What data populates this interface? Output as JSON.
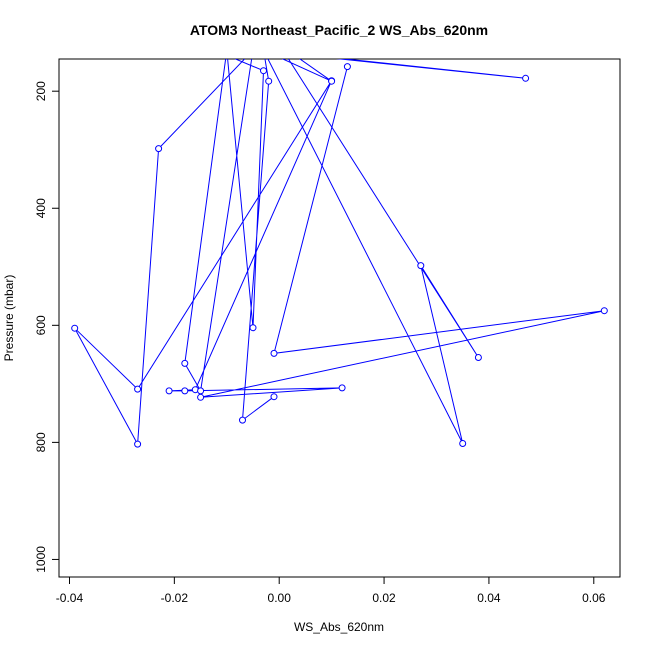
{
  "chart_data": {
    "type": "line",
    "title": "ATOM3 Northeast_Pacific_2 WS_Abs_620nm",
    "xlabel": "WS_Abs_620nm",
    "ylabel": "Pressure (mbar)",
    "xlim": [
      -0.042,
      0.065
    ],
    "ylim": [
      1030,
      145
    ],
    "y_reversed": true,
    "x_ticks": [
      -0.04,
      -0.02,
      0.0,
      0.02,
      0.04,
      0.06
    ],
    "x_tick_labels": [
      "-0.04",
      "-0.02",
      "0.00",
      "0.02",
      "0.04",
      "0.06"
    ],
    "y_ticks": [
      200,
      400,
      600,
      800,
      1000
    ],
    "y_tick_labels": [
      "200",
      "400",
      "600",
      "800",
      "1000"
    ],
    "color": "#0000ff",
    "series": [
      {
        "points": [
          {
            "x": 0.013,
            "y": 158
          },
          {
            "x": -0.001,
            "y": 648
          },
          {
            "x": 0.062,
            "y": 575
          },
          {
            "x": -0.015,
            "y": 723
          },
          {
            "x": 0.012,
            "y": 707
          },
          {
            "x": -0.018,
            "y": 712
          },
          {
            "x": -0.021,
            "y": 712
          },
          {
            "x": -0.016,
            "y": 710
          },
          {
            "x": 0.01,
            "y": 182
          },
          {
            "x": -0.027,
            "y": 709
          },
          {
            "x": -0.039,
            "y": 605
          },
          {
            "x": -0.027,
            "y": 803
          },
          {
            "x": -0.023,
            "y": 298
          },
          {
            "x": -0.005,
            "y": 130
          },
          {
            "x": -0.015,
            "y": 712
          },
          {
            "x": -0.018,
            "y": 665
          },
          {
            "x": -0.01,
            "y": 130
          },
          {
            "x": -0.005,
            "y": 604
          },
          {
            "x": -0.003,
            "y": 165
          },
          {
            "x": -0.015,
            "y": 120
          },
          {
            "x": 0.047,
            "y": 178
          },
          {
            "x": -0.003,
            "y": 130
          },
          {
            "x": 0.035,
            "y": 802
          },
          {
            "x": 0.027,
            "y": 498
          },
          {
            "x": 0.038,
            "y": 655
          },
          {
            "x": 0.0,
            "y": 120
          },
          {
            "x": 0.01,
            "y": 183
          },
          {
            "x": -0.003,
            "y": 130
          },
          {
            "x": -0.002,
            "y": 183
          },
          {
            "x": -0.007,
            "y": 762
          },
          {
            "x": -0.001,
            "y": 722
          }
        ]
      }
    ]
  }
}
